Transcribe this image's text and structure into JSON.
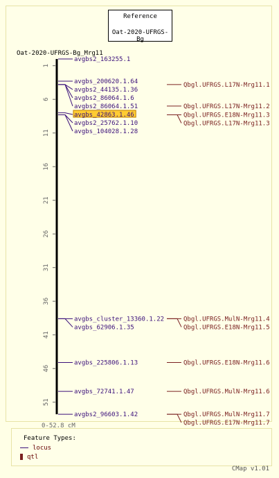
{
  "reference": {
    "title": "Reference",
    "map_name": "Oat-2020-UFRGS-Bg"
  },
  "map": {
    "name": "Oat-2020-UFRGS-Bg_Mrg11",
    "range_label": "0-52.8 cM",
    "ticks": [
      "1",
      "6",
      "11",
      "16",
      "21",
      "26",
      "31",
      "36",
      "41",
      "46",
      "51"
    ]
  },
  "loci": [
    {
      "name": "avgbs2_163255.1",
      "pos": 0.0,
      "highlight": false
    },
    {
      "name": "avgbs_200620.1.64",
      "pos": 3.3,
      "highlight": false
    },
    {
      "name": "avgbs2_44135.1.36",
      "pos": 3.8,
      "highlight": false
    },
    {
      "name": "avgbs2_86064.1.6",
      "pos": 3.8,
      "highlight": false
    },
    {
      "name": "avgbs2_86064.1.51",
      "pos": 3.8,
      "highlight": false
    },
    {
      "name": "avgbs_42863.1.46",
      "pos": 8.0,
      "highlight": true
    },
    {
      "name": "avgbs2_25762.1.10",
      "pos": 8.3,
      "highlight": false
    },
    {
      "name": "avgbs_104028.1.28",
      "pos": 8.3,
      "highlight": false
    },
    {
      "name": "avgbs_cluster_13360.1.22",
      "pos": 38.6,
      "highlight": false
    },
    {
      "name": "avgbs_62906.1.35",
      "pos": 38.6,
      "highlight": false
    },
    {
      "name": "avgbs_225806.1.13",
      "pos": 45.1,
      "highlight": false
    },
    {
      "name": "avgbs_72741.1.47",
      "pos": 49.4,
      "highlight": false
    },
    {
      "name": "avgbs2_96603.1.42",
      "pos": 52.8,
      "highlight": false
    }
  ],
  "qtls": [
    {
      "name": "Qbgl.UFRGS.L17N-Mrg11.1",
      "pos": 3.8
    },
    {
      "name": "Qbgl.UFRGS.L17N-Mrg11.2",
      "pos": 7.0
    },
    {
      "name": "Qbgl.UFRGS.E18N-Mrg11.3",
      "pos": 8.3
    },
    {
      "name": "Qbgl.UFRGS.L17N-Mrg11.3",
      "pos": 8.3
    },
    {
      "name": "Qbgl.UFRGS.MulN-Mrg11.4",
      "pos": 38.6
    },
    {
      "name": "Qbgl.UFRGS.E18N-Mrg11.5",
      "pos": 38.6
    },
    {
      "name": "Qbgl.UFRGS.E18N-Mrg11.6",
      "pos": 45.1
    },
    {
      "name": "Qbgl.UFRGS.MulN-Mrg11.6",
      "pos": 49.4
    },
    {
      "name": "Qbgl.UFRGS.MulN-Mrg11.7",
      "pos": 52.8
    },
    {
      "name": "Qbgl.UFRGS.E17N-Mrg11.7",
      "pos": 52.8
    }
  ],
  "legend": {
    "title": "Feature Types:",
    "locus_label": "locus",
    "qtl_label": "qtl"
  },
  "footer": "CMap v1.01",
  "colors": {
    "locus": "#3a0f7a",
    "qtl": "#7a2020",
    "highlight_bg": "#ffcc33",
    "axis": "#000000",
    "tick_text": "#666666"
  }
}
